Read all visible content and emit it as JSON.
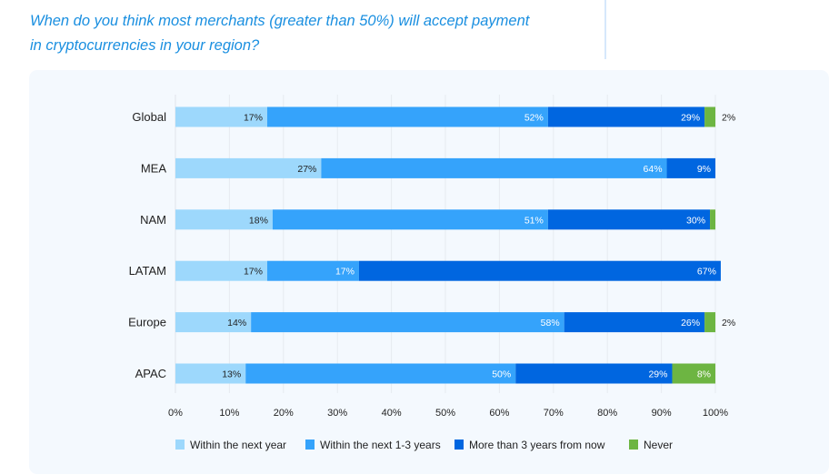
{
  "question": {
    "line1": "When do you think most merchants (greater than 50%) will accept payment",
    "line2": "in cryptocurrencies in your region?"
  },
  "chart_data": {
    "type": "bar",
    "orientation": "horizontal",
    "stacked": true,
    "title": "When do you think most merchants (greater than 50%) will accept payment in cryptocurrencies in your region?",
    "xlabel": "",
    "ylabel": "",
    "xlim": [
      0,
      100
    ],
    "x_ticks": [
      "0%",
      "10%",
      "20%",
      "30%",
      "40%",
      "50%",
      "60%",
      "70%",
      "80%",
      "90%",
      "100%"
    ],
    "grid": true,
    "legend_position": "bottom",
    "categories": [
      "Global",
      "MEA",
      "NAM",
      "LATAM",
      "Europe",
      "APAC"
    ],
    "series": [
      {
        "name": "Within the next year",
        "color": "#9dd8fc",
        "label_color": "#1f1f1f",
        "values": [
          17,
          27,
          18,
          17,
          14,
          13
        ],
        "labels": [
          "17%",
          "27%",
          "18%",
          "17%",
          "14%",
          "13%"
        ]
      },
      {
        "name": "Within the next 1-3 years",
        "color": "#35a3fb",
        "label_color": "#ffffff",
        "values": [
          52,
          64,
          51,
          17,
          58,
          50
        ],
        "labels": [
          "52%",
          "64%",
          "51%",
          "17%",
          "58%",
          "50%"
        ]
      },
      {
        "name": "More than 3 years from now",
        "color": "#0066e0",
        "label_color": "#ffffff",
        "values": [
          29,
          9,
          30,
          67,
          26,
          29
        ],
        "labels": [
          "29%",
          "9%",
          "30%",
          "67%",
          "26%",
          "29%"
        ]
      },
      {
        "name": "Never",
        "color": "#6db542",
        "label_color": "#ffffff",
        "values": [
          2,
          0,
          1,
          0,
          2,
          8
        ],
        "labels": [
          "2%",
          "",
          "",
          "",
          "2%",
          "8%"
        ]
      }
    ]
  }
}
